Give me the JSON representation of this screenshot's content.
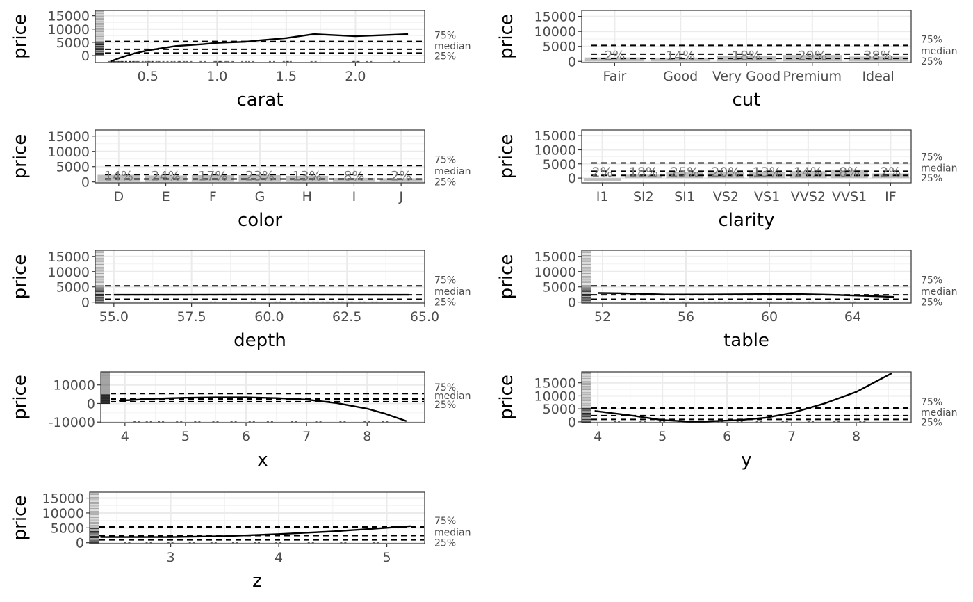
{
  "reference_lines": {
    "values": [
      950,
      2401,
      5324
    ],
    "labels": [
      "25%",
      "median",
      "75%"
    ]
  },
  "chart_data": [
    {
      "id": "carat",
      "type": "line",
      "xlabel": "carat",
      "ylabel": "price",
      "xlim": [
        0.12,
        2.5
      ],
      "ylim": [
        -2600,
        17000
      ],
      "x_ticks": [
        0.5,
        1.0,
        1.5,
        2.0
      ],
      "x_tick_labels": [
        "0.5",
        "1.0",
        "1.5",
        "2.0"
      ],
      "y_ticks": [
        0,
        5000,
        10000,
        15000
      ],
      "y_tick_labels": [
        "0",
        "5000",
        "10000",
        "15000"
      ],
      "series": [
        {
          "x": [
            0.23,
            0.3,
            0.4,
            0.5,
            0.7,
            0.9,
            1.0,
            1.2,
            1.3,
            1.5,
            1.7,
            2.0,
            2.2,
            2.38
          ],
          "y": [
            -2200,
            -800,
            800,
            2000,
            3600,
            4300,
            4800,
            5200,
            5700,
            6600,
            8100,
            7300,
            7700,
            8100
          ]
        }
      ],
      "rug_y_range": [
        0,
        18000
      ],
      "rug_x": [
        0.24,
        0.27,
        0.29,
        0.31,
        0.33,
        0.36,
        0.39,
        0.41,
        0.45,
        0.5,
        0.52,
        0.55,
        0.6,
        0.66,
        0.71,
        0.75,
        0.8,
        0.9,
        1.0,
        1.01,
        1.05,
        1.1,
        1.2,
        1.25,
        1.4,
        1.5,
        1.52,
        1.7,
        2.0,
        2.01,
        2.1,
        2.3
      ]
    },
    {
      "id": "cut",
      "type": "bar",
      "xlabel": "cut",
      "ylabel": "price",
      "ylim": [
        -400,
        17000
      ],
      "categories": [
        "Fair",
        "Good",
        "Very Good",
        "Premium",
        "Ideal"
      ],
      "values": [
        1300,
        1250,
        1700,
        2100,
        1600
      ],
      "percent_labels": [
        "2%",
        "14%",
        "18%",
        "29%",
        "38%"
      ],
      "y_ticks": [
        0,
        5000,
        10000,
        15000
      ],
      "y_tick_labels": [
        "0",
        "5000",
        "10000",
        "15000"
      ]
    },
    {
      "id": "color",
      "type": "bar",
      "xlabel": "color",
      "ylabel": "price",
      "ylim": [
        -300,
        17000
      ],
      "categories": [
        "D",
        "E",
        "F",
        "G",
        "H",
        "I",
        "J"
      ],
      "values": [
        2300,
        2100,
        2200,
        2200,
        2000,
        1300,
        1200
      ],
      "percent_labels": [
        "14%",
        "24%",
        "17%",
        "23%",
        "13%",
        "8%",
        "2%"
      ],
      "y_ticks": [
        0,
        5000,
        10000,
        15000
      ],
      "y_tick_labels": [
        "0",
        "5000",
        "10000",
        "15000"
      ]
    },
    {
      "id": "clarity",
      "type": "bar",
      "xlabel": "clarity",
      "ylabel": "price",
      "ylim": [
        -1700,
        17000
      ],
      "categories": [
        "I1",
        "SI2",
        "SI1",
        "VS2",
        "VS1",
        "VVS2",
        "VVS1",
        "IF"
      ],
      "values": [
        -1200,
        1200,
        2000,
        2200,
        2000,
        2400,
        3000,
        1600
      ],
      "percent_labels": [
        "2%",
        "18%",
        "25%",
        "20%",
        "13%",
        "14%",
        "8%",
        "2%"
      ],
      "y_ticks": [
        0,
        5000,
        10000,
        15000
      ],
      "y_tick_labels": [
        "0",
        "5000",
        "10000",
        "15000"
      ]
    },
    {
      "id": "depth",
      "type": "line",
      "xlabel": "depth",
      "ylabel": "price",
      "xlim": [
        54.4,
        65.0
      ],
      "ylim": [
        -300,
        17000
      ],
      "x_ticks": [
        55.0,
        57.5,
        60.0,
        62.5,
        65.0
      ],
      "x_tick_labels": [
        "55.0",
        "57.5",
        "60.0",
        "62.5",
        "65.0"
      ],
      "y_ticks": [
        0,
        5000,
        10000,
        15000
      ],
      "y_tick_labels": [
        "0",
        "5000",
        "10000",
        "15000"
      ],
      "series": [
        {
          "x": [
            55.0,
            57.0,
            59.0,
            61.0,
            63.0,
            64.5
          ],
          "y": [
            2400,
            2400,
            2450,
            2450,
            2400,
            2400
          ]
        }
      ],
      "rug_y_range": [
        0,
        17000
      ],
      "rug_x": [
        58.2,
        59.5,
        60.3,
        60.8,
        61.2,
        61.5,
        61.8,
        62.0,
        62.3,
        62.6,
        63.0,
        63.4
      ]
    },
    {
      "id": "table",
      "type": "line",
      "xlabel": "table",
      "ylabel": "price",
      "xlim": [
        51.0,
        66.8
      ],
      "ylim": [
        -300,
        17000
      ],
      "x_ticks": [
        52,
        56,
        60,
        64
      ],
      "x_tick_labels": [
        "52",
        "56",
        "60",
        "64"
      ],
      "y_ticks": [
        0,
        5000,
        10000,
        15000
      ],
      "y_tick_labels": [
        "0",
        "5000",
        "10000",
        "15000"
      ],
      "series": [
        {
          "x": [
            51.8,
            53,
            55,
            57,
            59,
            61,
            63,
            64.5,
            66
          ],
          "y": [
            3000,
            2900,
            2500,
            2500,
            2600,
            2700,
            2400,
            2100,
            1700
          ]
        }
      ],
      "rug_y_range": [
        0,
        17000
      ],
      "rug_x": [
        54,
        55,
        56,
        57,
        57.5,
        58,
        59,
        60,
        61,
        62,
        63,
        64
      ]
    },
    {
      "id": "x",
      "type": "line",
      "xlabel": "x",
      "ylabel": "price",
      "xlim": [
        3.6,
        8.95
      ],
      "ylim": [
        -10300,
        17000
      ],
      "x_ticks": [
        4,
        5,
        6,
        7,
        8
      ],
      "x_tick_labels": [
        "4",
        "5",
        "6",
        "7",
        "8"
      ],
      "y_ticks": [
        -10000,
        0,
        10000
      ],
      "y_tick_labels": [
        "-10000",
        "0",
        "10000"
      ],
      "series": [
        {
          "x": [
            3.9,
            4.5,
            5.0,
            5.5,
            6.0,
            6.5,
            7.0,
            7.5,
            8.0,
            8.3,
            8.65
          ],
          "y": [
            1500,
            2600,
            3100,
            3300,
            3300,
            2900,
            2100,
            200,
            -2800,
            -5500,
            -9500
          ]
        }
      ],
      "rug_y_range": [
        0,
        17000
      ],
      "rug_x": [
        4.2,
        4.4,
        4.6,
        4.9,
        5.2,
        5.5,
        5.8,
        6.1,
        6.4,
        6.8,
        7.2,
        7.6,
        8.0,
        8.3
      ]
    },
    {
      "id": "y",
      "type": "line",
      "xlabel": "y",
      "ylabel": "price",
      "xlim": [
        3.75,
        8.85
      ],
      "ylim": [
        -300,
        19200
      ],
      "x_ticks": [
        4,
        5,
        6,
        7,
        8
      ],
      "x_tick_labels": [
        "4",
        "5",
        "6",
        "7",
        "8"
      ],
      "y_ticks": [
        0,
        5000,
        10000,
        15000
      ],
      "y_tick_labels": [
        "0",
        "5000",
        "10000",
        "15000"
      ],
      "series": [
        {
          "x": [
            3.95,
            4.5,
            5.0,
            5.5,
            5.8,
            6.2,
            6.6,
            7.0,
            7.5,
            8.0,
            8.55
          ],
          "y": [
            4200,
            2500,
            700,
            0,
            300,
            700,
            1600,
            3400,
            7000,
            11500,
            18700
          ]
        }
      ],
      "rug_y_range": [
        0,
        19000
      ],
      "rug_x": [
        4.3,
        4.7,
        5.0,
        5.3,
        5.6,
        5.9,
        6.2,
        6.5,
        6.9,
        7.3,
        7.7,
        8.1
      ]
    },
    {
      "id": "z",
      "type": "line",
      "xlabel": "z",
      "ylabel": "price",
      "xlim": [
        2.25,
        5.35
      ],
      "ylim": [
        -300,
        17000
      ],
      "x_ticks": [
        3,
        4,
        5
      ],
      "x_tick_labels": [
        "3",
        "4",
        "5"
      ],
      "y_ticks": [
        0,
        5000,
        10000,
        15000
      ],
      "y_tick_labels": [
        "0",
        "5000",
        "10000",
        "15000"
      ],
      "series": [
        {
          "x": [
            2.35,
            3.0,
            3.5,
            4.0,
            4.5,
            5.0,
            5.22
          ],
          "y": [
            1900,
            1900,
            2200,
            2900,
            3800,
            5000,
            5600
          ]
        }
      ],
      "rug_y_range": [
        0,
        17000
      ],
      "rug_x": [
        2.6,
        2.8,
        3.0,
        3.2,
        3.4,
        3.6,
        3.8,
        4.0,
        4.3,
        4.6,
        4.9
      ]
    }
  ]
}
